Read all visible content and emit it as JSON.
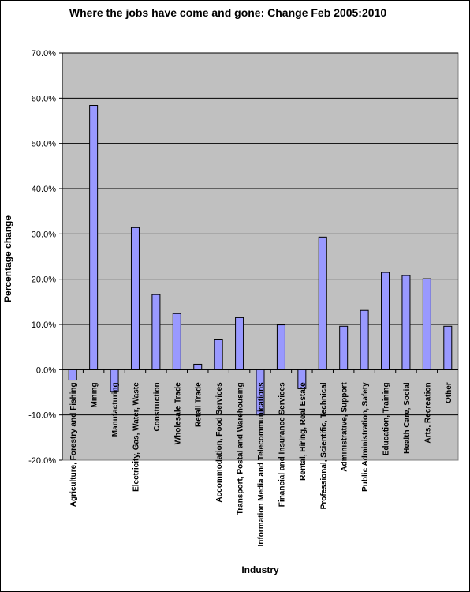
{
  "chart_data": {
    "type": "bar",
    "title": "Where the jobs have come and gone: Change Feb 2005:2010",
    "xlabel": "Industry",
    "ylabel": "Percentage change",
    "ylim": [
      -20,
      70
    ],
    "yticks": [
      70,
      60,
      50,
      40,
      30,
      20,
      10,
      0,
      -10,
      -20
    ],
    "ytick_labels": [
      "70.0%",
      "60.0%",
      "50.0%",
      "40.0%",
      "30.0%",
      "20.0%",
      "10.0%",
      "0.0%",
      "-10.0%",
      "-20.0%"
    ],
    "grid": true,
    "legend": "none",
    "colors": {
      "plot_background": "#c0c0c0",
      "bar_fill": "#9999ff",
      "bar_stroke": "#000000",
      "gridline": "#000000"
    },
    "categories": [
      "Agriculture, Forestry and Fishing",
      "Mining",
      "Manufacturing",
      "Electricity, Gas, Water, Waste",
      "Construction",
      "Wholesale Trade",
      "Retail Trade",
      "Accommodation, Food Services",
      "Transport, Postal and Warehousing",
      "Information Media and Telecommunications",
      "Financial and Insurance Services",
      "Rental, Hiring, Real Estate",
      "Professional, Scientific, Technical",
      "Administrative, Support",
      "Public Administration, Safety",
      "Education, Training",
      "Health Care, Social",
      "Arts, Recreation",
      "Other"
    ],
    "values": [
      -2.3,
      58.4,
      -4.8,
      31.4,
      16.6,
      12.4,
      1.2,
      6.6,
      11.5,
      -10.0,
      9.9,
      -4.2,
      29.3,
      9.6,
      13.1,
      21.5,
      20.8,
      20.1,
      9.6
    ]
  }
}
